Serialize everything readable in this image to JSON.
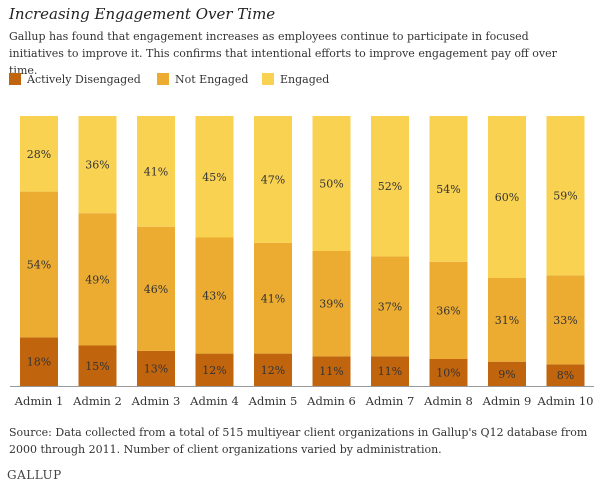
{
  "title": "Increasing Engagement Over Time",
  "subtitle": "Gallup has found that engagement increases as employees continue to participate in focused initiatives to improve it. This confirms that intentional efforts to improve engagement pay off over time.",
  "source_note": "Source: Data collected from a total of 515 multiyear client organizations in Gallup's Q12 database from 2000 through 2011. Number of client organizations varied by administration.",
  "brand": "GALLUP",
  "chart_data": {
    "type": "bar",
    "stacked": true,
    "orientation": "vertical",
    "value_suffix": "%",
    "ylim": [
      0,
      100
    ],
    "grid": false,
    "legend_position": "top-left",
    "categories": [
      "Admin 1",
      "Admin 2",
      "Admin 3",
      "Admin 4",
      "Admin 5",
      "Admin 6",
      "Admin 7",
      "Admin 8",
      "Admin 9",
      "Admin 10"
    ],
    "series": [
      {
        "name": "Actively Disengaged",
        "color": "#C0650E",
        "values": [
          18,
          15,
          13,
          12,
          12,
          11,
          11,
          10,
          9,
          8
        ]
      },
      {
        "name": "Not Engaged",
        "color": "#EBAC31",
        "values": [
          54,
          49,
          46,
          43,
          41,
          39,
          37,
          36,
          31,
          33
        ]
      },
      {
        "name": "Engaged",
        "color": "#FAD251",
        "values": [
          28,
          36,
          41,
          45,
          47,
          50,
          52,
          54,
          60,
          59
        ]
      }
    ]
  }
}
